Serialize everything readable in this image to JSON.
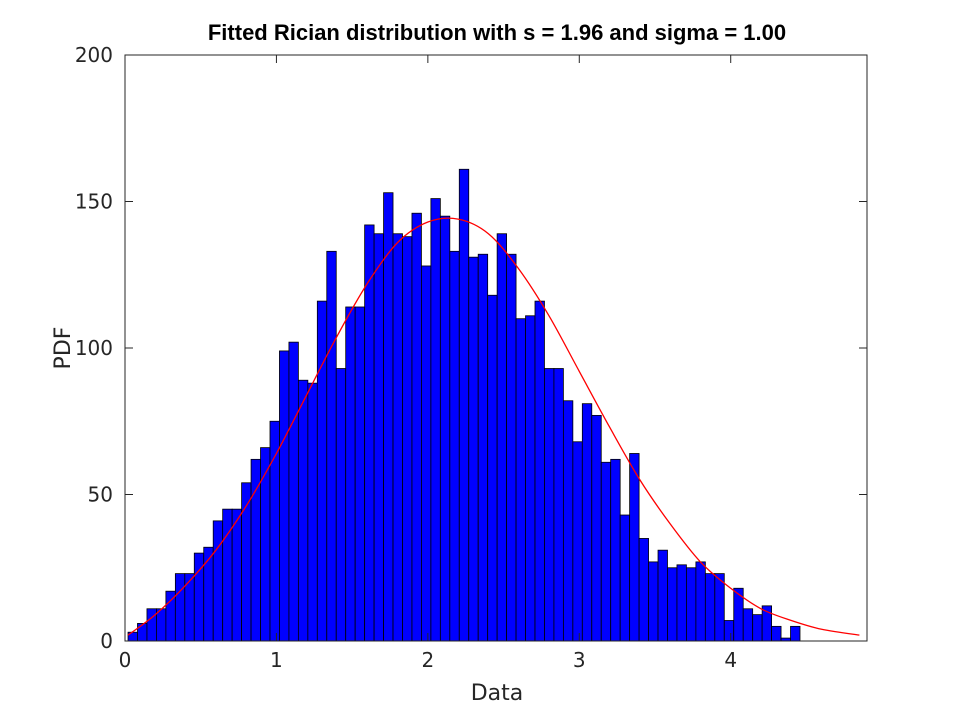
{
  "chart_data": {
    "type": "bar",
    "title": "Fitted Rician distribution with s = 1.96 and sigma = 1.00",
    "xlabel": "Data",
    "ylabel": "PDF",
    "xlim": [
      0,
      4.9
    ],
    "ylim": [
      0,
      200
    ],
    "xticks": [
      0,
      1,
      2,
      3,
      4
    ],
    "yticks": [
      0,
      50,
      100,
      150,
      200
    ],
    "grid": false,
    "bin_width": 0.0625,
    "bin_start": 0.02,
    "series": [
      {
        "kind": "histogram",
        "color": "#0000ff",
        "edge_color": "#000000",
        "values": [
          3,
          6,
          11,
          11,
          17,
          23,
          23,
          30,
          32,
          41,
          45,
          45,
          54,
          62,
          66,
          75,
          99,
          102,
          89,
          88,
          116,
          133,
          93,
          114,
          114,
          142,
          139,
          153,
          139,
          138,
          146,
          128,
          151,
          145,
          133,
          161,
          131,
          132,
          118,
          139,
          132,
          110,
          111,
          116,
          93,
          93,
          82,
          68,
          81,
          77,
          61,
          62,
          43,
          64,
          35,
          27,
          31,
          25,
          26,
          25,
          27,
          23,
          23,
          7,
          18,
          11,
          9,
          12,
          5,
          1,
          5
        ]
      },
      {
        "kind": "fitted-curve",
        "color": "#ff0000",
        "description": "Rician PDF fit, s = 1.96, sigma = 1.00",
        "x": [
          0.02,
          0.2,
          0.4,
          0.6,
          0.8,
          1.0,
          1.2,
          1.4,
          1.6,
          1.8,
          2.0,
          2.2,
          2.4,
          2.6,
          2.8,
          3.0,
          3.2,
          3.4,
          3.6,
          3.8,
          4.0,
          4.2,
          4.4,
          4.6,
          4.85
        ],
        "y": [
          2,
          9,
          19,
          31,
          46,
          64,
          84,
          104,
          122,
          136,
          143,
          144,
          139,
          127,
          111,
          92,
          73,
          55,
          40,
          27,
          18,
          11,
          7,
          4,
          2
        ]
      }
    ]
  }
}
